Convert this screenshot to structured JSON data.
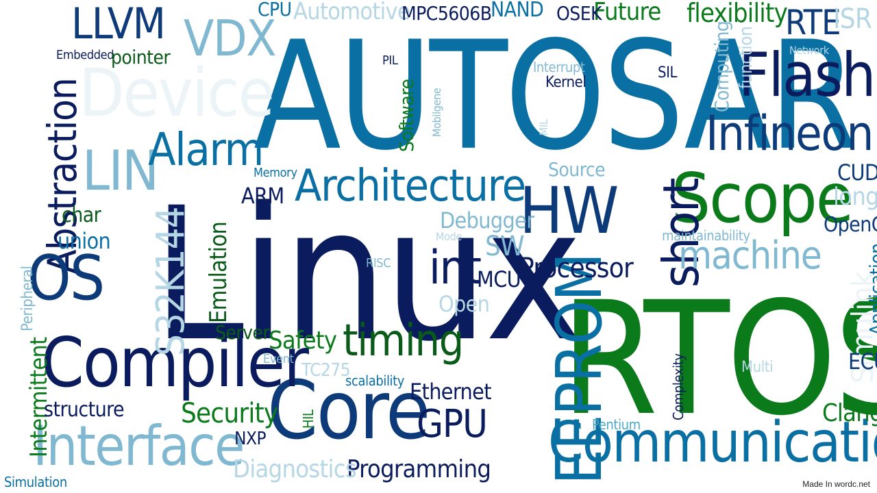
{
  "colors": {
    "navy": "#0b1c5e",
    "dark_blue": "#0d3a78",
    "blue": "#0a6fa3",
    "sky": "#4aa8c8",
    "light": "#7fb8d0",
    "pale": "#b5d6e4",
    "faint": "#ecf4f7",
    "green": "#0b7a1a",
    "dark_green": "#0a5a1a"
  },
  "words": [
    {
      "text": "AUTOSAR",
      "color": "blue"
    },
    {
      "text": "Linux",
      "color": "navy"
    },
    {
      "text": "RTOS",
      "color": "green"
    },
    {
      "text": "Flash",
      "color": "navy"
    },
    {
      "text": "Infineon",
      "color": "dark_blue"
    },
    {
      "text": "Scope",
      "color": "green"
    },
    {
      "text": "Core",
      "color": "dark_blue"
    },
    {
      "text": "Compiler",
      "color": "navy"
    },
    {
      "text": "Communication",
      "color": "blue"
    },
    {
      "text": "Interface",
      "color": "light"
    },
    {
      "text": "Architecture",
      "color": "blue"
    },
    {
      "text": "Device",
      "color": "faint"
    },
    {
      "text": "Abstraction",
      "color": "navy"
    },
    {
      "text": "EEPROM",
      "color": "blue"
    },
    {
      "text": "timing",
      "color": "dark_green"
    },
    {
      "text": "HW",
      "color": "dark_blue"
    },
    {
      "text": "short",
      "color": "navy"
    },
    {
      "text": "LIN",
      "color": "light"
    },
    {
      "text": "OS",
      "color": "dark_blue"
    },
    {
      "text": "VDX",
      "color": "light"
    },
    {
      "text": "LLVM",
      "color": "dark_blue"
    },
    {
      "text": "Alarm",
      "color": "blue"
    },
    {
      "text": "int",
      "color": "navy"
    },
    {
      "text": "machine",
      "color": "light"
    },
    {
      "text": "S32K144",
      "color": "pale"
    },
    {
      "text": "Simulink",
      "color": "faint"
    },
    {
      "text": "Emulation",
      "color": "dark_green"
    },
    {
      "text": "GPU",
      "color": "navy"
    },
    {
      "text": "Processor",
      "color": "navy"
    },
    {
      "text": "Programming",
      "color": "navy"
    },
    {
      "text": "Diagnostics",
      "color": "pale"
    },
    {
      "text": "Security",
      "color": "green"
    },
    {
      "text": "Safety",
      "color": "green"
    },
    {
      "text": "Clang",
      "color": "green"
    },
    {
      "text": "RTE",
      "color": "dark_blue"
    },
    {
      "text": "flexibility",
      "color": "green"
    },
    {
      "text": "Future",
      "color": "green"
    },
    {
      "text": "Automotive",
      "color": "pale"
    },
    {
      "text": "MPC5606B",
      "color": "navy"
    },
    {
      "text": "CPU",
      "color": "blue"
    },
    {
      "text": "NAND",
      "color": "blue"
    },
    {
      "text": "OSEK",
      "color": "navy"
    },
    {
      "text": "ISR",
      "color": "pale"
    },
    {
      "text": "Embedded",
      "color": "navy"
    },
    {
      "text": "pointer",
      "color": "dark_green"
    },
    {
      "text": "PIL",
      "color": "navy"
    },
    {
      "text": "Software",
      "color": "green"
    },
    {
      "text": "Mobilgene",
      "color": "light"
    },
    {
      "text": "MIL",
      "color": "pale"
    },
    {
      "text": "Interrupt",
      "color": "light"
    },
    {
      "text": "Kernel",
      "color": "navy"
    },
    {
      "text": "SIL",
      "color": "navy"
    },
    {
      "text": "Computing",
      "color": "light"
    },
    {
      "text": "function",
      "color": "pale"
    },
    {
      "text": "Network",
      "color": "pale"
    },
    {
      "text": "Memory",
      "color": "blue"
    },
    {
      "text": "ARM",
      "color": "navy"
    },
    {
      "text": "Source",
      "color": "light"
    },
    {
      "text": "char",
      "color": "dark_green"
    },
    {
      "text": "union",
      "color": "blue"
    },
    {
      "text": "Debugger",
      "color": "light"
    },
    {
      "text": "Mode",
      "color": "pale"
    },
    {
      "text": "SW",
      "color": "light"
    },
    {
      "text": "MCU",
      "color": "navy"
    },
    {
      "text": "Open",
      "color": "pale"
    },
    {
      "text": "RISC",
      "color": "light"
    },
    {
      "text": "maintainability",
      "color": "light"
    },
    {
      "text": "OpenCL",
      "color": "dark_blue"
    },
    {
      "text": "long",
      "color": "pale"
    },
    {
      "text": "CUDA",
      "color": "dark_blue"
    },
    {
      "text": "Application",
      "color": "blue"
    },
    {
      "text": "ECU",
      "color": "dark_blue"
    },
    {
      "text": "Multi",
      "color": "pale"
    },
    {
      "text": "Complexity",
      "color": "navy"
    },
    {
      "text": "Pentium",
      "color": "sky"
    },
    {
      "text": "Peripheral",
      "color": "light"
    },
    {
      "text": "Intermittent",
      "color": "green"
    },
    {
      "text": "Simulation",
      "color": "blue"
    },
    {
      "text": "structure",
      "color": "navy"
    },
    {
      "text": "NXP",
      "color": "navy"
    },
    {
      "text": "HIL",
      "color": "green"
    },
    {
      "text": "Server",
      "color": "dark_green"
    },
    {
      "text": "Event",
      "color": "light"
    },
    {
      "text": "TC275",
      "color": "pale"
    },
    {
      "text": "scalability",
      "color": "blue"
    },
    {
      "text": "Ethernet",
      "color": "navy"
    }
  ],
  "credit": "Made In wordc.net"
}
